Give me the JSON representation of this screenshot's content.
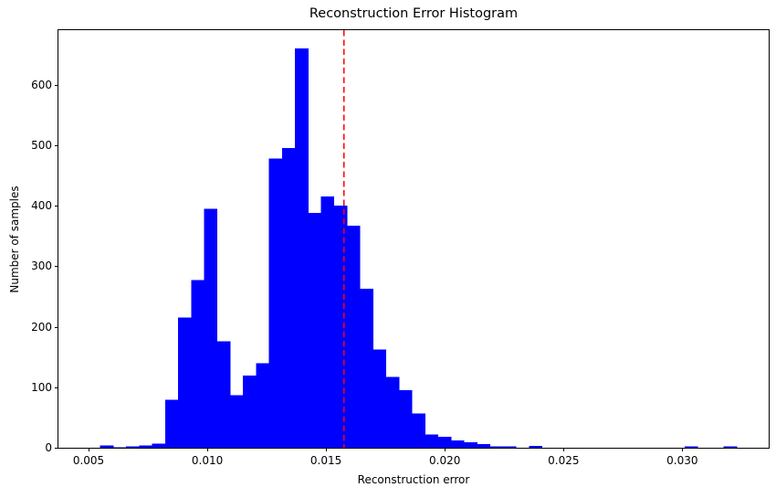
{
  "title": "Reconstruction Error Histogram",
  "chart_data": {
    "type": "bar",
    "subtype": "histogram",
    "title": "Reconstruction Error Histogram",
    "xlabel": "Reconstruction error",
    "ylabel": "Number of samples",
    "bar_color": "#0000ff",
    "threshold_line": {
      "x": 0.01575,
      "color": "#ff0000",
      "style": "dashed"
    },
    "bin_start": 0.005488,
    "bin_width": 0.000547,
    "counts": [
      4,
      1,
      2,
      4,
      7,
      79,
      215,
      277,
      395,
      176,
      87,
      119,
      140,
      478,
      495,
      660,
      388,
      415,
      400,
      367,
      263,
      162,
      117,
      95,
      57,
      22,
      18,
      12,
      9,
      6,
      2,
      2,
      0,
      3,
      0,
      0,
      0,
      0,
      0,
      0,
      0,
      0,
      0,
      0,
      0,
      2,
      0,
      0,
      2
    ],
    "xlim": [
      0.00373,
      0.03364
    ],
    "ylim": [
      0,
      690
    ],
    "x_ticks": [
      0.005,
      0.01,
      0.015,
      0.02,
      0.025,
      0.03
    ],
    "x_tick_labels": [
      "0.005",
      "0.010",
      "0.015",
      "0.020",
      "0.025",
      "0.030"
    ],
    "y_ticks": [
      0,
      100,
      200,
      300,
      400,
      500,
      600
    ],
    "y_tick_labels": [
      "0",
      "100",
      "200",
      "300",
      "400",
      "500",
      "600"
    ],
    "grid": false,
    "legend_position": "none"
  }
}
